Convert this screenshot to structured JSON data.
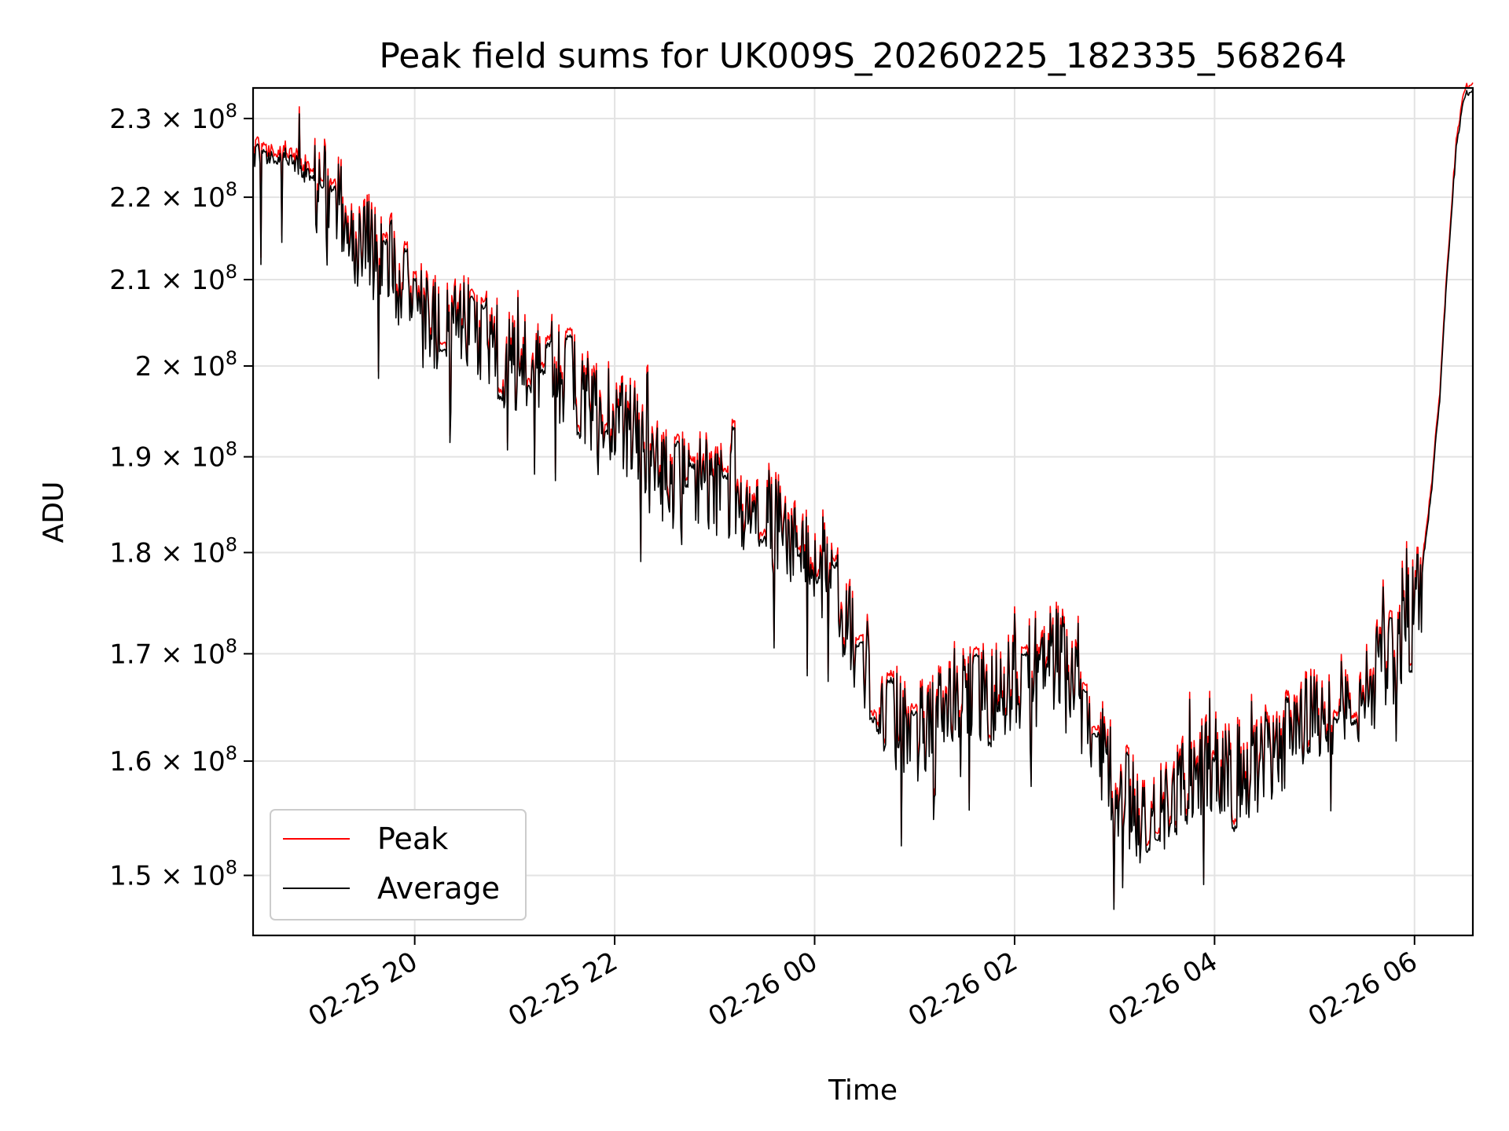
{
  "chart_data": {
    "type": "line",
    "title": "Peak field sums for UK009S_20260225_182335_568264",
    "xlabel": "Time",
    "ylabel": "ADU",
    "grid": true,
    "legend_position": "lower-left",
    "y_scale": "log",
    "x_range": [
      "2026-02-25T18:23",
      "2026-02-26T06:35"
    ],
    "ylim": [
      145000000,
      234000000
    ],
    "x_ticks": [
      {
        "value": "2026-02-25T20:00",
        "label": "02-25 20"
      },
      {
        "value": "2026-02-25T22:00",
        "label": "02-25 22"
      },
      {
        "value": "2026-02-26T00:00",
        "label": "02-26 00"
      },
      {
        "value": "2026-02-26T02:00",
        "label": "02-26 02"
      },
      {
        "value": "2026-02-26T04:00",
        "label": "02-26 04"
      },
      {
        "value": "2026-02-26T06:00",
        "label": "02-26 06"
      }
    ],
    "y_ticks": [
      {
        "value": 150000000,
        "mantissa": "1.5",
        "label": "1.5 × 10^8"
      },
      {
        "value": 160000000,
        "mantissa": "1.6",
        "label": "1.6 × 10^8"
      },
      {
        "value": 170000000,
        "mantissa": "1.7",
        "label": "1.7 × 10^8"
      },
      {
        "value": 180000000,
        "mantissa": "1.8",
        "label": "1.8 × 10^8"
      },
      {
        "value": 190000000,
        "mantissa": "1.9",
        "label": "1.9 × 10^8"
      },
      {
        "value": 200000000,
        "mantissa": "2",
        "label": "2 × 10^8"
      },
      {
        "value": 210000000,
        "mantissa": "2.1",
        "label": "2.1 × 10^8"
      },
      {
        "value": 220000000,
        "mantissa": "2.2",
        "label": "2.2 × 10^8"
      },
      {
        "value": 230000000,
        "mantissa": "2.3",
        "label": "2.3 × 10^8"
      }
    ],
    "series": [
      {
        "name": "Peak",
        "color": "#ff0000",
        "offset_factor": 1.004
      },
      {
        "name": "Average",
        "color": "#000000",
        "x": [
          "2026-02-25T18:23",
          "2026-02-25T18:45",
          "2026-02-25T19:00",
          "2026-02-25T19:15",
          "2026-02-25T19:30",
          "2026-02-25T19:45",
          "2026-02-25T20:00",
          "2026-02-25T20:15",
          "2026-02-25T20:30",
          "2026-02-25T20:45",
          "2026-02-25T21:00",
          "2026-02-25T21:15",
          "2026-02-25T21:30",
          "2026-02-25T21:45",
          "2026-02-25T22:00",
          "2026-02-25T22:15",
          "2026-02-25T22:30",
          "2026-02-25T22:45",
          "2026-02-25T23:00",
          "2026-02-25T23:15",
          "2026-02-25T23:30",
          "2026-02-25T23:45",
          "2026-02-26T00:00",
          "2026-02-26T00:15",
          "2026-02-26T00:30",
          "2026-02-26T00:45",
          "2026-02-26T01:00",
          "2026-02-26T01:15",
          "2026-02-26T01:30",
          "2026-02-26T01:45",
          "2026-02-26T02:00",
          "2026-02-26T02:15",
          "2026-02-26T02:30",
          "2026-02-26T02:45",
          "2026-02-26T03:00",
          "2026-02-26T03:15",
          "2026-02-26T03:30",
          "2026-02-26T03:45",
          "2026-02-26T04:00",
          "2026-02-26T04:15",
          "2026-02-26T04:30",
          "2026-02-26T04:45",
          "2026-02-26T05:00",
          "2026-02-26T05:15",
          "2026-02-26T05:30",
          "2026-02-26T05:45",
          "2026-02-26T06:00",
          "2026-02-26T06:05",
          "2026-02-26T06:10",
          "2026-02-26T06:15",
          "2026-02-26T06:20",
          "2026-02-26T06:25",
          "2026-02-26T06:30",
          "2026-02-26T06:35"
        ],
        "values": [
          225000000,
          225000000,
          222000000,
          218000000,
          214000000,
          212000000,
          208000000,
          204000000,
          204000000,
          202000000,
          200000000,
          200000000,
          199000000,
          196000000,
          194000000,
          192000000,
          188000000,
          187000000,
          187000000,
          185000000,
          184000000,
          181000000,
          179000000,
          175000000,
          169000000,
          164000000,
          162000000,
          165000000,
          167000000,
          166000000,
          167000000,
          170000000,
          169000000,
          163000000,
          158000000,
          155000000,
          156000000,
          159000000,
          160000000,
          159000000,
          160000000,
          162000000,
          164000000,
          165000000,
          166000000,
          170000000,
          174000000,
          179000000,
          186000000,
          196000000,
          212000000,
          226000000,
          233000000,
          234000000
        ]
      }
    ]
  }
}
